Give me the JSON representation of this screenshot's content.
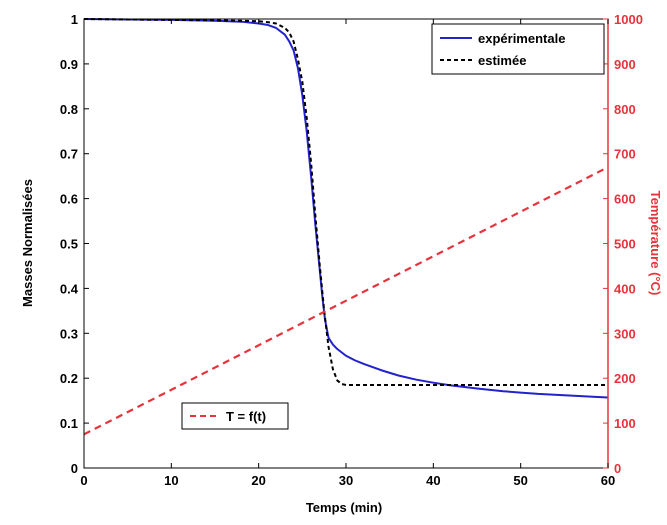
{
  "chart_data": {
    "type": "line",
    "xlabel": "Temps (min)",
    "ylabel_left": "Masses  Normalisées",
    "ylabel_right": "Température (°C)",
    "xlim": [
      0,
      60
    ],
    "ylim_left": [
      0,
      1
    ],
    "ylim_right": [
      0,
      1000
    ],
    "x_ticks": [
      "0",
      "10",
      "20",
      "30",
      "40",
      "50",
      "60"
    ],
    "y_ticks_left": [
      "0",
      "0.1",
      "0.2",
      "0.3",
      "0.4",
      "0.5",
      "0.6",
      "0.7",
      "0.8",
      "0.9",
      "1"
    ],
    "y_ticks_right": [
      "0",
      "100",
      "200",
      "300",
      "400",
      "500",
      "600",
      "700",
      "800",
      "900",
      "1000"
    ],
    "grid": false,
    "series": [
      {
        "name": "expérimentale",
        "axis": "left",
        "color": "#2222cc",
        "style": "solid",
        "x": [
          0,
          5,
          10,
          15,
          18,
          20,
          21,
          22,
          23,
          23.5,
          24,
          24.5,
          25,
          25.5,
          26,
          26.5,
          27,
          27.3,
          27.6,
          28,
          28.5,
          29,
          30,
          31,
          32,
          34,
          36,
          38,
          40,
          42,
          45,
          48,
          50,
          52,
          55,
          58,
          60
        ],
        "y": [
          1.0,
          0.999,
          0.998,
          0.996,
          0.994,
          0.99,
          0.987,
          0.98,
          0.965,
          0.95,
          0.93,
          0.89,
          0.83,
          0.75,
          0.65,
          0.54,
          0.44,
          0.38,
          0.33,
          0.29,
          0.275,
          0.265,
          0.25,
          0.24,
          0.232,
          0.218,
          0.206,
          0.197,
          0.19,
          0.184,
          0.177,
          0.171,
          0.168,
          0.165,
          0.162,
          0.159,
          0.157
        ]
      },
      {
        "name": "estimée",
        "axis": "left",
        "color": "#000000",
        "style": "dashed",
        "x": [
          0,
          5,
          10,
          15,
          18,
          20,
          21,
          22,
          23,
          23.5,
          24,
          24.5,
          25,
          25.5,
          26,
          26.5,
          27,
          27.5,
          28,
          28.5,
          29,
          29.5,
          30,
          35,
          40,
          45,
          50,
          55,
          60
        ],
        "y": [
          1.0,
          0.999,
          0.998,
          0.997,
          0.996,
          0.995,
          0.993,
          0.99,
          0.98,
          0.97,
          0.95,
          0.91,
          0.86,
          0.78,
          0.68,
          0.56,
          0.45,
          0.35,
          0.27,
          0.22,
          0.195,
          0.187,
          0.185,
          0.185,
          0.185,
          0.185,
          0.185,
          0.185,
          0.185
        ]
      },
      {
        "name": "T = f(t)",
        "axis": "right",
        "color": "#e8323c",
        "style": "dashed",
        "x": [
          0,
          60
        ],
        "y": [
          75,
          670
        ]
      }
    ],
    "legend": {
      "placement": "top-right",
      "entries": [
        "expérimentale",
        "estimée"
      ]
    },
    "legend2": {
      "placement": "bottom-left",
      "entries": [
        "T = f(t)"
      ]
    }
  }
}
